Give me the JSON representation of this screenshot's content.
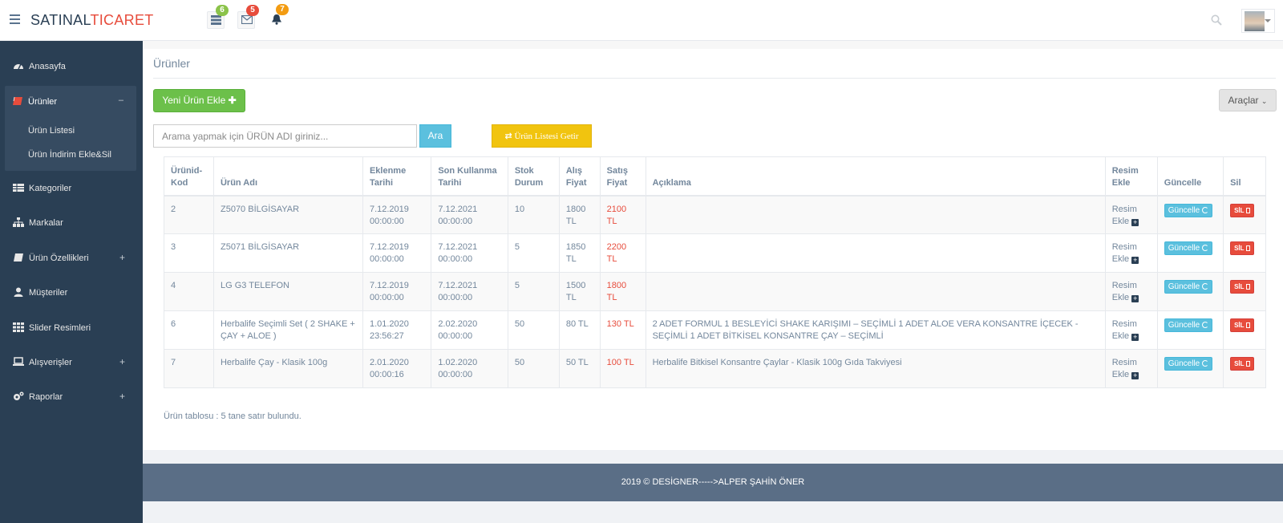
{
  "header": {
    "brand_left": "SATINAL",
    "brand_right": "TICARET",
    "notifications": [
      {
        "icon": "list-icon",
        "count": "6",
        "color": "#8bc34a"
      },
      {
        "icon": "envelope-icon",
        "count": "5",
        "color": "#e74c3c"
      },
      {
        "icon": "bell-icon",
        "count": "7",
        "color": "#f39c12"
      }
    ]
  },
  "sidebar": {
    "items": [
      {
        "label": "Anasayfa",
        "icon": "dashboard-icon",
        "expander": ""
      },
      {
        "label": "Ürünler",
        "icon": "book-icon",
        "expander": "–"
      },
      {
        "label": "Ürün Listesi",
        "icon": "",
        "expander": ""
      },
      {
        "label": "Ürün İndirim Ekle&Sil",
        "icon": "",
        "expander": ""
      },
      {
        "label": "Kategoriler",
        "icon": "table-icon",
        "expander": ""
      },
      {
        "label": "Markalar",
        "icon": "sitemap-icon",
        "expander": ""
      },
      {
        "label": "Ürün Özellikleri",
        "icon": "book-icon",
        "expander": "+"
      },
      {
        "label": "Müşteriler",
        "icon": "user-icon",
        "expander": ""
      },
      {
        "label": "Slider Resimleri",
        "icon": "grid-icon",
        "expander": ""
      },
      {
        "label": "Alışverişler",
        "icon": "laptop-icon",
        "expander": "+"
      },
      {
        "label": "Raporlar",
        "icon": "gears-icon",
        "expander": "+"
      }
    ]
  },
  "page": {
    "title": "Ürünler",
    "new_button": "Yeni Ürün Ekle",
    "tools_button": "Araçlar",
    "search_placeholder": "Arama yapmak için ÜRÜN ADI giriniz...",
    "search_button": "Ara",
    "list_button": "Ürün Listesi Getir",
    "summary": "Ürün tablosu : 5 tane satır bulundu."
  },
  "table": {
    "headers": [
      "Ürünid-Kod",
      "Ürün Adı",
      "Eklenme Tarihi",
      "Son Kullanma Tarihi",
      "Stok Durum",
      "Alış Fiyat",
      "Satış Fiyat",
      "Açıklama",
      "Resim Ekle",
      "Güncelle",
      "Sil"
    ],
    "image_link": "Resim Ekle",
    "update_label": "Güncelle",
    "delete_label": "SİL",
    "rows": [
      {
        "id": "2",
        "name": "Z5070 BİLGİSAYAR",
        "added": "7.12.2019 00:00:00",
        "expiry": "7.12.2021 00:00:00",
        "stock": "10",
        "buy": "1800 TL",
        "sell": "2100 TL",
        "desc": ""
      },
      {
        "id": "3",
        "name": "Z5071 BİLGİSAYAR",
        "added": "7.12.2019 00:00:00",
        "expiry": "7.12.2021 00:00:00",
        "stock": "5",
        "buy": "1850 TL",
        "sell": "2200 TL",
        "desc": ""
      },
      {
        "id": "4",
        "name": "LG G3 TELEFON",
        "added": "7.12.2019 00:00:00",
        "expiry": "7.12.2021 00:00:00",
        "stock": "5",
        "buy": "1500 TL",
        "sell": "1800 TL",
        "desc": ""
      },
      {
        "id": "6",
        "name": "Herbalife Seçimli Set ( 2 SHAKE + ÇAY + ALOE )",
        "added": "1.01.2020 23:56:27",
        "expiry": "2.02.2020 00:00:00",
        "stock": "50",
        "buy": "80 TL",
        "sell": "130 TL",
        "desc": "2 ADET FORMUL 1 BESLEYİCİ SHAKE KARIŞIMI – SEÇİMLİ 1 ADET ALOE VERA KONSANTRE İÇECEK - SEÇİMLİ 1 ADET BİTKİSEL KONSANTRE ÇAY – SEÇİMLİ"
      },
      {
        "id": "7",
        "name": "Herbalife Çay - Klasik 100g",
        "added": "2.01.2020 00:00:16",
        "expiry": "1.02.2020 00:00:00",
        "stock": "50",
        "buy": "50 TL",
        "sell": "100 TL",
        "desc": "Herbalife Bitkisel Konsantre Çaylar - Klasik 100g Gıda Takviyesi"
      }
    ]
  },
  "footer": {
    "text": "2019 © DESİGNER----->ALPER ŞAHİN ÖNER"
  }
}
